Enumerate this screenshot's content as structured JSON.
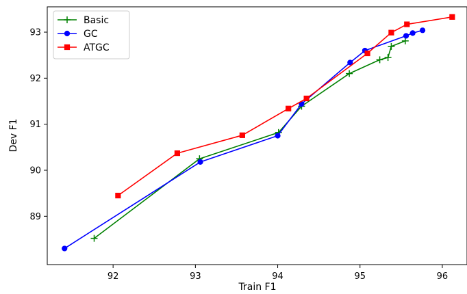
{
  "chart_data": {
    "type": "line",
    "title": "",
    "xlabel": "Train F1",
    "ylabel": "Dev F1",
    "xlim": [
      91.2,
      96.3
    ],
    "ylim": [
      87.95,
      93.55
    ],
    "xticks": [
      92,
      93,
      94,
      95,
      96
    ],
    "yticks": [
      89,
      90,
      91,
      92,
      93
    ],
    "grid": false,
    "legend_position": "top-left",
    "series": [
      {
        "name": "Basic",
        "color": "#008000",
        "marker": "plus",
        "points": [
          [
            91.77,
            88.52
          ],
          [
            93.05,
            90.25
          ],
          [
            94.01,
            90.82
          ],
          [
            94.29,
            91.39
          ],
          [
            94.87,
            92.1
          ],
          [
            95.24,
            92.4
          ],
          [
            95.34,
            92.45
          ],
          [
            95.38,
            92.69
          ],
          [
            95.55,
            92.81
          ]
        ]
      },
      {
        "name": "GC",
        "color": "#0000ff",
        "marker": "circle",
        "points": [
          [
            91.41,
            88.3
          ],
          [
            93.06,
            90.18
          ],
          [
            94.0,
            90.75
          ],
          [
            94.29,
            91.44
          ],
          [
            94.88,
            92.34
          ],
          [
            95.06,
            92.6
          ],
          [
            95.56,
            92.92
          ],
          [
            95.64,
            92.98
          ],
          [
            95.76,
            93.04
          ]
        ]
      },
      {
        "name": "ATGC",
        "color": "#ff0000",
        "marker": "square",
        "points": [
          [
            92.06,
            89.45
          ],
          [
            92.78,
            90.37
          ],
          [
            93.57,
            90.76
          ],
          [
            94.13,
            91.34
          ],
          [
            94.35,
            91.56
          ],
          [
            95.09,
            92.54
          ],
          [
            95.38,
            92.99
          ],
          [
            95.57,
            93.17
          ],
          [
            96.12,
            93.33
          ]
        ]
      }
    ]
  }
}
